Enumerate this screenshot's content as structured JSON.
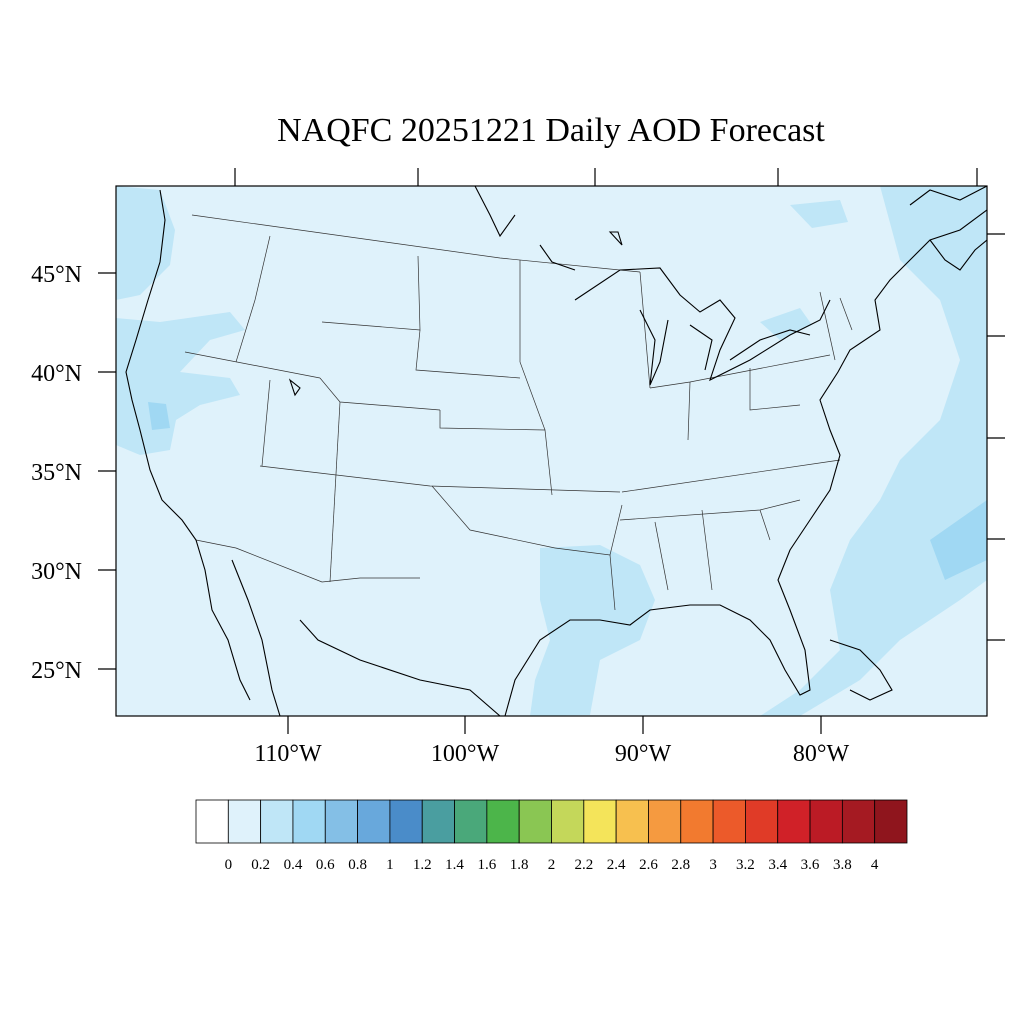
{
  "title": "NAQFC 20251221 Daily AOD Forecast",
  "axes": {
    "lat_labels": [
      "45°N",
      "40°N",
      "35°N",
      "30°N",
      "25°N"
    ],
    "lon_labels": [
      "110°W",
      "100°W",
      "90°W",
      "80°W"
    ]
  },
  "colorbar": {
    "labels": [
      "0",
      "0.2",
      "0.4",
      "0.6",
      "0.8",
      "1",
      "1.2",
      "1.4",
      "1.6",
      "1.8",
      "2",
      "2.2",
      "2.4",
      "2.6",
      "2.8",
      "3",
      "3.2",
      "3.4",
      "3.6",
      "3.8",
      "4"
    ],
    "colors": [
      "#ffffff",
      "#dff2fb",
      "#bfe6f7",
      "#a0d8f3",
      "#84bfe6",
      "#68a8dc",
      "#4a8cc9",
      "#4a9ea0",
      "#4aa87a",
      "#4cb54a",
      "#8ac653",
      "#c4d75a",
      "#f4e45a",
      "#f7c04f",
      "#f59a40",
      "#f27a2f",
      "#ec5a2a",
      "#e03b27",
      "#d02128",
      "#bb1b25",
      "#a51a22",
      "#8f151d"
    ]
  },
  "map_colors": {
    "background_aod": "#dff2fb",
    "patch_aod": "#bfe6f7",
    "strong_patch_aod": "#a0d8f3"
  }
}
